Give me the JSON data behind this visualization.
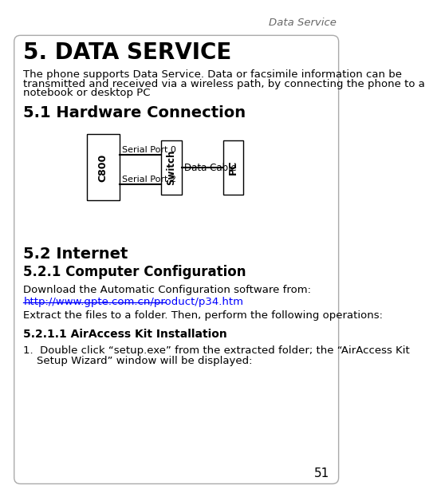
{
  "header_text": "Data Service",
  "title": "5. DATA SERVICE",
  "intro_lines": [
    "The phone supports Data Service. Data or facsimile information can be",
    "transmitted and received via a wireless path, by connecting the phone to a",
    "notebook or desktop PC"
  ],
  "section_hw": "5.1 Hardware Connection",
  "section_internet": "5.2 Internet",
  "section_comp": "5.2.1 Computer Configuration",
  "body_download": "Download the Automatic Configuration software from:",
  "link": "http://www.gpte.com.cn/product/p34.htm",
  "body_extract": "Extract the files to a folder. Then, perform the following operations:",
  "section_air": "5.2.1.1 AirAccess Kit Installation",
  "item1_line1": "1.  Double click “setup.exe” from the extracted folder; the “AirAccess Kit",
  "item1_line2": "    Setup Wizard” window will be displayed:",
  "page_num": "51",
  "bg_color": "#ffffff",
  "text_color": "#000000",
  "link_color": "#0000ff",
  "header_color": "#666666",
  "diagram": {
    "c800_label": "C800",
    "switch_label": "Switch",
    "pc_label": "PC",
    "serial0_label": "Serial Port 0",
    "serial2_label": "Serial Port 2",
    "cable_label": "Data Cable"
  }
}
